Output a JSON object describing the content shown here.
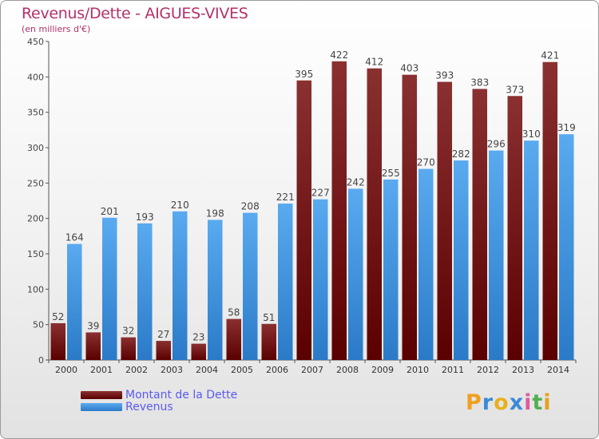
{
  "title": "Revenus/Dette - AIGUES-VIVES",
  "subtitle": "(en milliers d'€)",
  "legend": {
    "dette_label": "Montant de la Dette",
    "revenus_label": "Revenus"
  },
  "logo": {
    "text": "Proxiti"
  },
  "colors": {
    "dette_top": "#8a3030",
    "dette_bottom": "#5a0000",
    "revenus_top": "#5aaaf0",
    "revenus_bottom": "#2a7ac8",
    "title": "#b4306a",
    "legend_text": "#5a5af0"
  },
  "chart_data": {
    "type": "bar",
    "title": "Revenus/Dette - AIGUES-VIVES",
    "subtitle": "(en milliers d'€)",
    "categories": [
      "2000",
      "2001",
      "2002",
      "2003",
      "2004",
      "2005",
      "2006",
      "2007",
      "2008",
      "2009",
      "2010",
      "2011",
      "2012",
      "2013",
      "2014"
    ],
    "series": [
      {
        "name": "Montant de la Dette",
        "values": [
          52,
          39,
          32,
          27,
          23,
          58,
          51,
          395,
          422,
          412,
          403,
          393,
          383,
          373,
          421
        ]
      },
      {
        "name": "Revenus",
        "values": [
          164,
          201,
          193,
          210,
          198,
          208,
          221,
          227,
          242,
          255,
          270,
          282,
          296,
          310,
          319
        ]
      }
    ],
    "ylim": [
      0,
      450
    ],
    "yticks": [
      0,
      50,
      100,
      150,
      200,
      250,
      300,
      350,
      400,
      450
    ],
    "grid": false,
    "legend_position": "bottom-left"
  }
}
